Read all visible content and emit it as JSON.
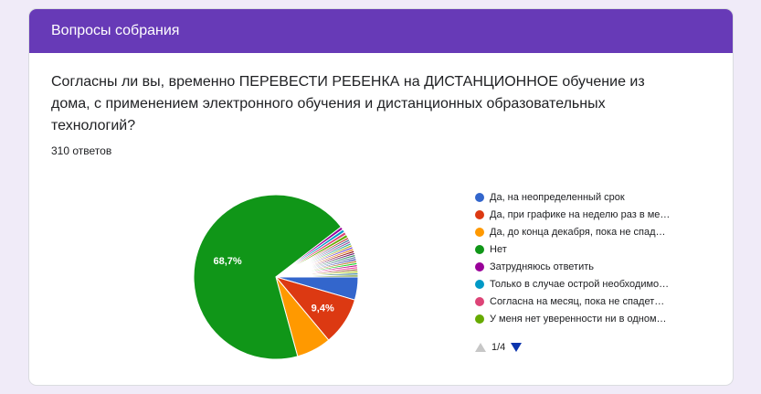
{
  "header": {
    "title": "Вопросы собрания"
  },
  "question": {
    "text": "Согласны ли вы, временно ПЕРЕВЕСТИ РЕБЕНКА на ДИСТАНЦИОННОЕ обучение из дома, с применением электронного обучения и дистанционных образовательных технологий?",
    "responses": "310 ответов"
  },
  "legend": {
    "items": [
      {
        "label": "Да, на неопределенный срок",
        "color": "#3366cc"
      },
      {
        "label": "Да, при графике на неделю раз в ме…",
        "color": "#dc3912"
      },
      {
        "label": "Да, до конца декабря, пока не спад…",
        "color": "#ff9900"
      },
      {
        "label": "Нет",
        "color": "#109618"
      },
      {
        "label": "Затрудняюсь ответить",
        "color": "#990099"
      },
      {
        "label": "Только в случае острой необходимо…",
        "color": "#0099c6"
      },
      {
        "label": "Согласна на месяц, пока не спадет…",
        "color": "#dd4477"
      },
      {
        "label": "У меня нет уверенности ни в одном…",
        "color": "#66aa00"
      }
    ],
    "pager": "1/4"
  },
  "chart_data": {
    "type": "pie",
    "title": "",
    "total": 310,
    "slices": [
      {
        "name": "Да, на неопределенный срок",
        "value": 4.5,
        "color": "#3366cc"
      },
      {
        "name": "Да, при графике на неделю раз в ме…",
        "value": 9.4,
        "color": "#dc3912",
        "label": "9,4%"
      },
      {
        "name": "Да, до конца декабря, пока не спад…",
        "value": 6.8,
        "color": "#ff9900"
      },
      {
        "name": "Нет",
        "value": 68.7,
        "color": "#109618",
        "label": "68,7%"
      },
      {
        "name": "Затрудняюсь ответить",
        "value": 0.6,
        "color": "#990099"
      },
      {
        "name": "Только в случае острой необходимо…",
        "value": 0.6,
        "color": "#0099c6"
      },
      {
        "name": "Согласна на месяц, пока не спадет…",
        "value": 0.6,
        "color": "#dd4477"
      },
      {
        "name": "У меня нет уверенности ни в одном…",
        "value": 0.6,
        "color": "#66aa00"
      },
      {
        "name": "",
        "value": 0.4,
        "color": "#b82e2e"
      },
      {
        "name": "",
        "value": 0.4,
        "color": "#316395"
      },
      {
        "name": "",
        "value": 0.4,
        "color": "#994499"
      },
      {
        "name": "",
        "value": 0.4,
        "color": "#22aa99"
      },
      {
        "name": "",
        "value": 0.4,
        "color": "#aaaa11"
      },
      {
        "name": "",
        "value": 0.4,
        "color": "#6633cc"
      },
      {
        "name": "",
        "value": 0.4,
        "color": "#e67300"
      },
      {
        "name": "",
        "value": 0.4,
        "color": "#8b0707"
      },
      {
        "name": "",
        "value": 0.4,
        "color": "#651067"
      },
      {
        "name": "",
        "value": 0.4,
        "color": "#329262"
      },
      {
        "name": "",
        "value": 0.4,
        "color": "#5574a6"
      },
      {
        "name": "",
        "value": 0.4,
        "color": "#3b3eac"
      },
      {
        "name": "",
        "value": 0.4,
        "color": "#b77322"
      },
      {
        "name": "",
        "value": 0.4,
        "color": "#16d620"
      },
      {
        "name": "",
        "value": 0.4,
        "color": "#b91383"
      },
      {
        "name": "",
        "value": 0.4,
        "color": "#f4359e"
      },
      {
        "name": "",
        "value": 0.4,
        "color": "#9c5935"
      },
      {
        "name": "",
        "value": 0.4,
        "color": "#a9c413"
      },
      {
        "name": "",
        "value": 0.4,
        "color": "#2a778d"
      },
      {
        "name": "",
        "value": 0.4,
        "color": "#668d1c"
      }
    ]
  }
}
